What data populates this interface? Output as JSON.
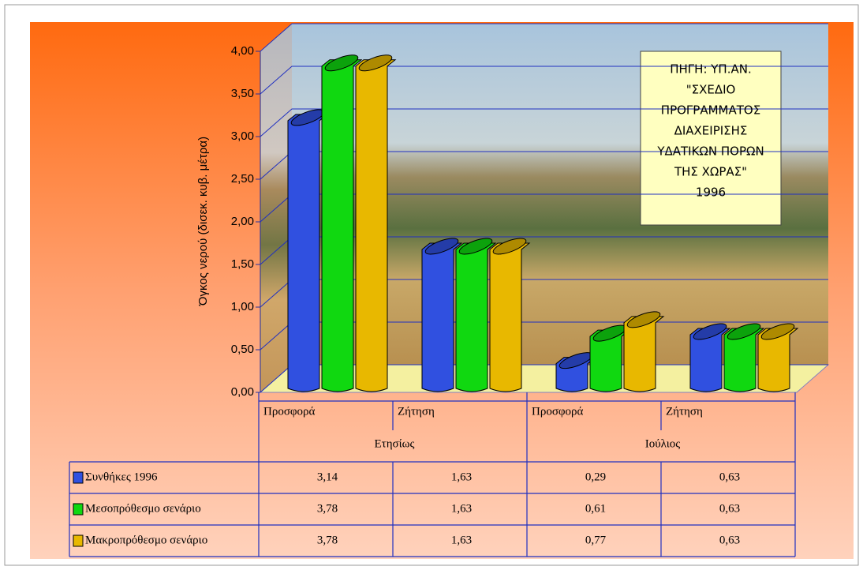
{
  "chart_data": {
    "type": "bar",
    "y_label": "Όγκος νερού (δισεκ. κυβ. μέτρα)",
    "categories": [
      "Προσφορά",
      "Ζήτηση",
      "Προσφορά",
      "Ζήτηση"
    ],
    "groups": [
      "Ετησίως",
      "Ιούλιος"
    ],
    "annotation": [
      "ΠΗΓΗ: ΥΠ.ΑΝ.",
      "\"ΣΧΕΔΙΟ",
      "ΠΡΟΓΡΑΜΜΑΤΟΣ",
      "ΔΙΑΧΕΙΡΙΣΗΣ",
      "ΥΔΑΤΙΚΩΝ ΠΟΡΩΝ",
      "ΤΗΣ ΧΩΡΑΣ\"",
      "1996"
    ],
    "series": [
      {
        "name": "Συνθήκες 1996",
        "color": "#3050e0",
        "values": [
          3.14,
          1.63,
          0.29,
          0.63
        ],
        "value_labels": [
          "3,14",
          "1,63",
          "0,29",
          "0,63"
        ]
      },
      {
        "name": "Μεσοπρόθεσμο σενάριο",
        "color": "#10d810",
        "values": [
          3.78,
          1.63,
          0.61,
          0.63
        ],
        "value_labels": [
          "3,78",
          "1,63",
          "0,61",
          "0,63"
        ]
      },
      {
        "name": "Μακροπρόθεσμο σενάριο",
        "color": "#e8b800",
        "values": [
          3.78,
          1.63,
          0.77,
          0.63
        ],
        "value_labels": [
          "3,78",
          "1,63",
          "0,77",
          "0,63"
        ]
      }
    ],
    "ylim": [
      0,
      4
    ],
    "yticks": [
      {
        "value": 0,
        "label": "0,00"
      },
      {
        "value": 0.5,
        "label": "0,50"
      },
      {
        "value": 1,
        "label": "1,00"
      },
      {
        "value": 1.5,
        "label": "1,50"
      },
      {
        "value": 2,
        "label": "2,00"
      },
      {
        "value": 2.5,
        "label": "2,50"
      },
      {
        "value": 3,
        "label": "3,00"
      },
      {
        "value": 3.5,
        "label": "3,50"
      },
      {
        "value": 4,
        "label": "4,00"
      }
    ],
    "grid": true
  }
}
